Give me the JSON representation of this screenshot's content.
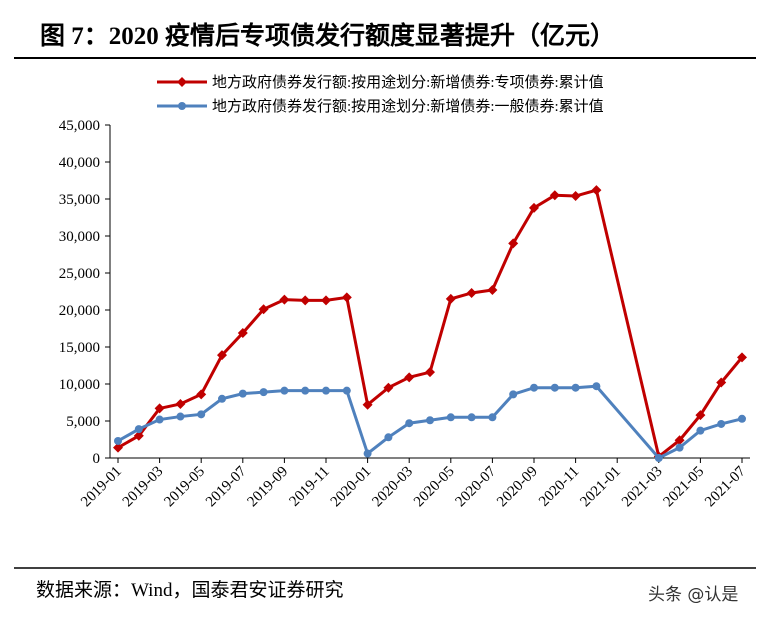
{
  "chart_data": {
    "type": "line",
    "title": "图 7：2020 疫情后专项债发行额度显著提升（亿元）",
    "x": [
      "2019-01",
      "2019-02",
      "2019-03",
      "2019-04",
      "2019-05",
      "2019-06",
      "2019-07",
      "2019-08",
      "2019-09",
      "2019-10",
      "2019-11",
      "2019-12",
      "2020-01",
      "2020-02",
      "2020-03",
      "2020-04",
      "2020-05",
      "2020-06",
      "2020-07",
      "2020-08",
      "2020-09",
      "2020-10",
      "2020-11",
      "2020-12",
      "2021-03",
      "2021-04",
      "2021-05",
      "2021-06",
      "2021-07"
    ],
    "series": [
      {
        "name": "地方政府债券发行额:按用途划分:新增债券:专项债券:累计值",
        "color": "#c00000",
        "values": [
          1400,
          3000,
          6700,
          7300,
          8600,
          13900,
          16900,
          20100,
          21400,
          21300,
          21300,
          21700,
          7200,
          9500,
          10900,
          11600,
          21500,
          22300,
          22700,
          29000,
          33800,
          35500,
          35400,
          36200,
          200,
          2400,
          5800,
          10200,
          13600
        ]
      },
      {
        "name": "地方政府债券发行额:按用途划分:新增债券:一般债券:累计值",
        "color": "#4f81bd",
        "values": [
          2300,
          3900,
          5200,
          5600,
          5900,
          8000,
          8700,
          8900,
          9100,
          9100,
          9100,
          9100,
          600,
          2800,
          4700,
          5100,
          5500,
          5500,
          5500,
          8600,
          9500,
          9500,
          9500,
          9700,
          0,
          1400,
          3700,
          4600,
          5300
        ]
      }
    ],
    "xticks": [
      "2019-01",
      "2019-03",
      "2019-05",
      "2019-07",
      "2019-09",
      "2019-11",
      "2020-01",
      "2020-03",
      "2020-05",
      "2020-07",
      "2020-09",
      "2020-11",
      "2021-01",
      "2021-03",
      "2021-05",
      "2021-07"
    ],
    "ylim": [
      0,
      45000
    ],
    "yticks": [
      0,
      {
        "value": 5000,
        "label": "5,000"
      },
      {
        "value": 10000,
        "label": "10,000"
      },
      {
        "value": 15000,
        "label": "15,000"
      },
      {
        "value": 20000,
        "label": "20,000"
      },
      {
        "value": 25000,
        "label": "25,000"
      },
      {
        "value": 30000,
        "label": "30,000"
      },
      {
        "value": 35000,
        "label": "35,000"
      },
      {
        "value": 40000,
        "label": "40,000"
      },
      {
        "value": 45000,
        "label": "45,000"
      }
    ],
    "source": "数据来源：Wind，国泰君安证券研究",
    "watermark": "头条 @认是"
  }
}
